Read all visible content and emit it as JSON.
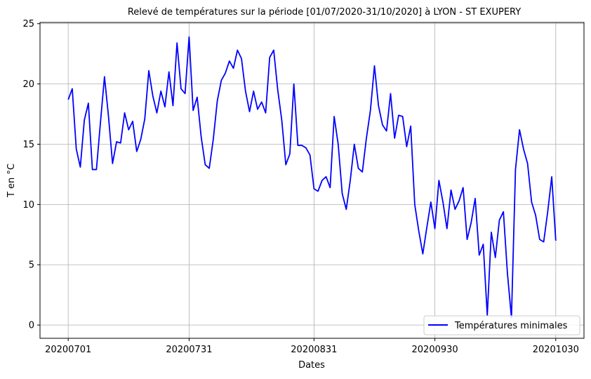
{
  "chart_data": {
    "type": "line",
    "title": "Relevé de températures sur la période [01/07/2020-31/10/2020] à LYON - ST EXUPERY",
    "xlabel": "Dates",
    "ylabel": "T en °C",
    "x_tick_labels": [
      "20200701",
      "20200731",
      "20200831",
      "20200930",
      "20201030"
    ],
    "y_ticks": [
      0,
      5,
      10,
      15,
      20,
      25
    ],
    "xlim": [
      "2020-06-24",
      "2020-11-06"
    ],
    "ylim": [
      -1.1,
      25.1
    ],
    "grid": true,
    "legend_position": "lower-right",
    "series": [
      {
        "name": "Températures minimales",
        "color": "#0000ff",
        "x": [
          "2020-07-01",
          "2020-07-02",
          "2020-07-03",
          "2020-07-04",
          "2020-07-05",
          "2020-07-06",
          "2020-07-07",
          "2020-07-08",
          "2020-07-09",
          "2020-07-10",
          "2020-07-11",
          "2020-07-12",
          "2020-07-13",
          "2020-07-14",
          "2020-07-15",
          "2020-07-16",
          "2020-07-17",
          "2020-07-18",
          "2020-07-19",
          "2020-07-20",
          "2020-07-21",
          "2020-07-22",
          "2020-07-23",
          "2020-07-24",
          "2020-07-25",
          "2020-07-26",
          "2020-07-27",
          "2020-07-28",
          "2020-07-29",
          "2020-07-30",
          "2020-07-31",
          "2020-08-01",
          "2020-08-02",
          "2020-08-03",
          "2020-08-04",
          "2020-08-05",
          "2020-08-06",
          "2020-08-07",
          "2020-08-08",
          "2020-08-09",
          "2020-08-10",
          "2020-08-11",
          "2020-08-12",
          "2020-08-13",
          "2020-08-14",
          "2020-08-15",
          "2020-08-16",
          "2020-08-17",
          "2020-08-18",
          "2020-08-19",
          "2020-08-20",
          "2020-08-21",
          "2020-08-22",
          "2020-08-23",
          "2020-08-24",
          "2020-08-25",
          "2020-08-26",
          "2020-08-27",
          "2020-08-28",
          "2020-08-29",
          "2020-08-30",
          "2020-08-31",
          "2020-09-01",
          "2020-09-02",
          "2020-09-03",
          "2020-09-04",
          "2020-09-05",
          "2020-09-06",
          "2020-09-07",
          "2020-09-08",
          "2020-09-09",
          "2020-09-10",
          "2020-09-11",
          "2020-09-12",
          "2020-09-13",
          "2020-09-14",
          "2020-09-15",
          "2020-09-16",
          "2020-09-17",
          "2020-09-18",
          "2020-09-19",
          "2020-09-20",
          "2020-09-21",
          "2020-09-22",
          "2020-09-23",
          "2020-09-24",
          "2020-09-25",
          "2020-09-26",
          "2020-09-27",
          "2020-09-28",
          "2020-09-29",
          "2020-09-30",
          "2020-10-01",
          "2020-10-02",
          "2020-10-03",
          "2020-10-04",
          "2020-10-05",
          "2020-10-06",
          "2020-10-07",
          "2020-10-08",
          "2020-10-09",
          "2020-10-10",
          "2020-10-11",
          "2020-10-12",
          "2020-10-13",
          "2020-10-14",
          "2020-10-15",
          "2020-10-16",
          "2020-10-17",
          "2020-10-18",
          "2020-10-19",
          "2020-10-20",
          "2020-10-21",
          "2020-10-22",
          "2020-10-23",
          "2020-10-24",
          "2020-10-25",
          "2020-10-26",
          "2020-10-27",
          "2020-10-28",
          "2020-10-29",
          "2020-10-30"
        ],
        "y": [
          18.7,
          19.6,
          14.6,
          13.1,
          17.0,
          18.4,
          12.9,
          12.9,
          16.8,
          20.6,
          17.3,
          13.4,
          15.2,
          15.1,
          17.6,
          16.2,
          16.9,
          14.4,
          15.4,
          17.1,
          21.1,
          19.0,
          17.6,
          19.4,
          18.1,
          21.0,
          18.2,
          23.4,
          19.6,
          19.2,
          23.9,
          17.8,
          18.9,
          15.6,
          13.3,
          13.0,
          15.4,
          18.6,
          20.3,
          20.9,
          21.9,
          21.3,
          22.8,
          22.1,
          19.4,
          17.7,
          19.4,
          17.9,
          18.5,
          17.6,
          22.2,
          22.8,
          19.5,
          17.0,
          13.3,
          14.2,
          20.0,
          14.9,
          14.9,
          14.7,
          14.1,
          11.3,
          11.1,
          12.0,
          12.3,
          11.4,
          17.3,
          15.0,
          10.9,
          9.6,
          12.0,
          15.0,
          13.0,
          12.7,
          15.5,
          17.8,
          21.5,
          18.2,
          16.6,
          16.1,
          19.2,
          15.5,
          17.4,
          17.3,
          14.8,
          16.5,
          10.0,
          7.8,
          5.9,
          8.1,
          10.2,
          8.0,
          12.0,
          10.2,
          8.0,
          11.2,
          9.6,
          10.3,
          11.4,
          7.1,
          8.5,
          10.5,
          5.8,
          6.7,
          0.8,
          7.7,
          5.6,
          8.7,
          9.4,
          4.3,
          0.6,
          12.9,
          16.2,
          14.6,
          13.4,
          10.2,
          9.1,
          7.1,
          6.9,
          9.4,
          12.3,
          7.0
        ]
      }
    ]
  }
}
